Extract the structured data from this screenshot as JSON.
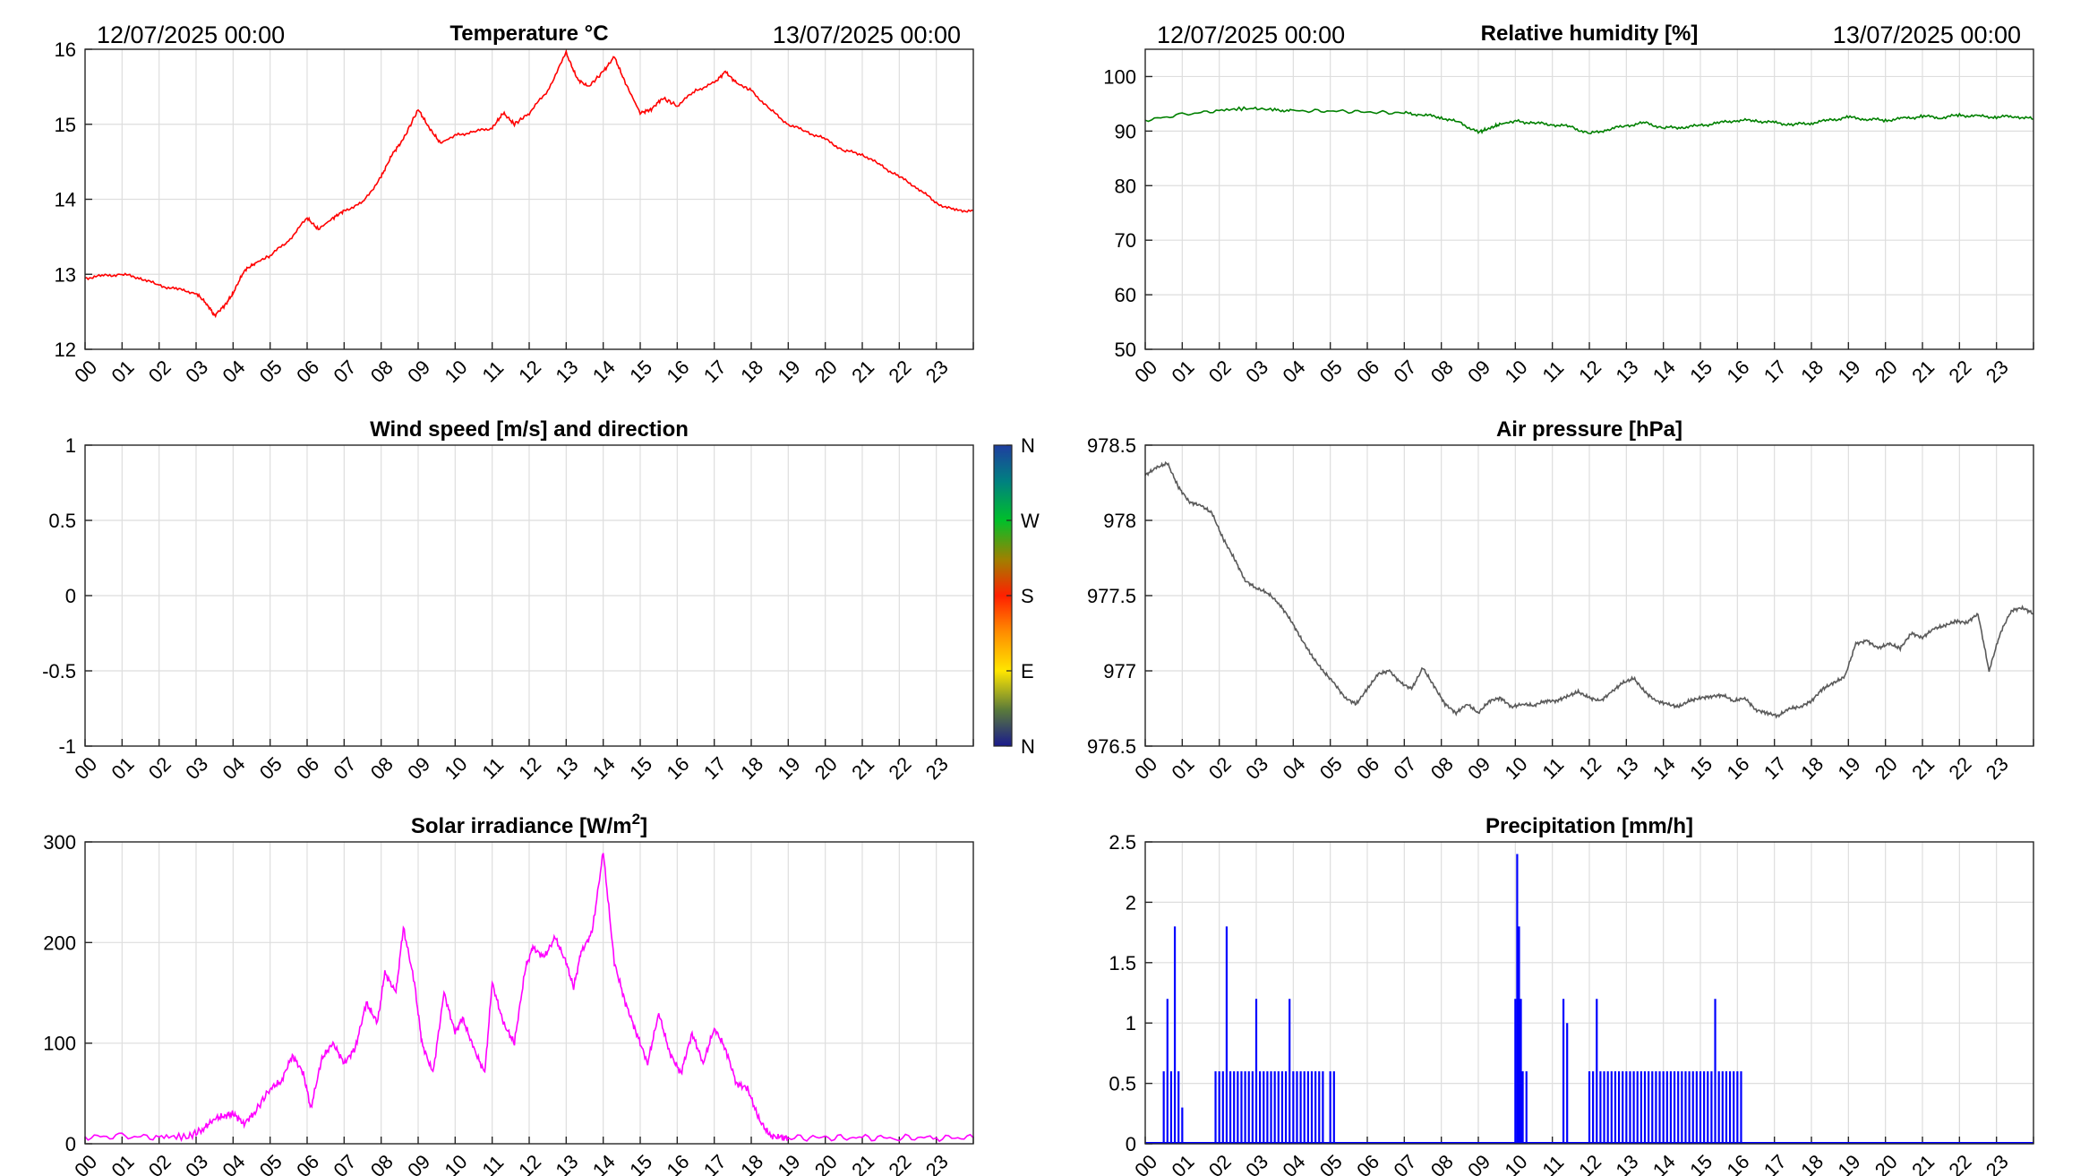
{
  "header": {
    "left_date": "12/07/2025 00:00",
    "right_date": "13/07/2025 00:00"
  },
  "hour_labels": [
    "00",
    "01",
    "02",
    "03",
    "04",
    "05",
    "06",
    "07",
    "08",
    "09",
    "10",
    "11",
    "12",
    "13",
    "14",
    "15",
    "16",
    "17",
    "18",
    "19",
    "20",
    "21",
    "22",
    "23"
  ],
  "chart_data": [
    {
      "id": "temperature",
      "type": "line",
      "title": "Temperature °C",
      "color": "#ff0000",
      "ylim": [
        12,
        16
      ],
      "yticks": [
        "12",
        "13",
        "14",
        "15",
        "16"
      ],
      "xlim": [
        0,
        24
      ],
      "grid": true,
      "series": [
        {
          "x": [
            0,
            0.5,
            1,
            1.5,
            2,
            2.5,
            3,
            3.3,
            3.5,
            3.8,
            4,
            4.3,
            4.6,
            5,
            5.5,
            6,
            6.3,
            6.7,
            7,
            7.5,
            8,
            8.3,
            8.6,
            9,
            9.3,
            9.6,
            10,
            10.5,
            11,
            11.3,
            11.6,
            12,
            12.5,
            13,
            13.3,
            13.6,
            14,
            14.3,
            14.6,
            15,
            15.3,
            15.6,
            16,
            16.5,
            17,
            17.3,
            17.6,
            18,
            18.5,
            19,
            19.5,
            20,
            20.5,
            21,
            21.5,
            22,
            22.5,
            23,
            23.5,
            24
          ],
          "y": [
            12.95,
            12.98,
            13.0,
            12.95,
            12.85,
            12.8,
            12.75,
            12.6,
            12.45,
            12.6,
            12.75,
            13.05,
            13.15,
            13.25,
            13.45,
            13.75,
            13.6,
            13.75,
            13.85,
            13.95,
            14.3,
            14.6,
            14.8,
            15.2,
            14.95,
            14.75,
            14.85,
            14.9,
            14.95,
            15.15,
            15.0,
            15.15,
            15.45,
            15.95,
            15.6,
            15.5,
            15.7,
            15.9,
            15.55,
            15.15,
            15.2,
            15.35,
            15.25,
            15.45,
            15.55,
            15.7,
            15.55,
            15.45,
            15.2,
            15.0,
            14.9,
            14.8,
            14.65,
            14.6,
            14.45,
            14.3,
            14.15,
            13.95,
            13.85,
            13.85
          ]
        }
      ]
    },
    {
      "id": "humidity",
      "type": "line",
      "title": "Relative humidity [%]",
      "color": "#008000",
      "ylim": [
        50,
        105
      ],
      "yticks": [
        "50",
        "60",
        "70",
        "80",
        "90",
        "100"
      ],
      "xlim": [
        0,
        24
      ],
      "grid": true,
      "series": [
        {
          "x": [
            0,
            1,
            2,
            2.8,
            3.5,
            4,
            5,
            6,
            7,
            7.5,
            8,
            8.5,
            9,
            9.3,
            9.6,
            10,
            10.5,
            11,
            11.5,
            12,
            12.5,
            13,
            13.5,
            14,
            14.5,
            15,
            15.5,
            16,
            16.5,
            17,
            17.5,
            18,
            18.5,
            19,
            19.5,
            20,
            20.5,
            21,
            21.5,
            22,
            22.5,
            23,
            23.5,
            24
          ],
          "y": [
            92,
            93,
            93.8,
            94.2,
            93.9,
            93.7,
            93.7,
            93.5,
            93.3,
            93.0,
            92.5,
            91.5,
            89.8,
            90.5,
            91.3,
            91.8,
            91.5,
            91.2,
            90.8,
            89.5,
            90.3,
            91.0,
            91.5,
            90.6,
            90.7,
            91.0,
            91.5,
            92.0,
            91.9,
            91.5,
            91.2,
            91.5,
            92.0,
            92.5,
            92.2,
            92.0,
            92.3,
            92.7,
            92.5,
            92.9,
            92.7,
            92.6,
            92.7,
            92.2
          ]
        }
      ]
    },
    {
      "id": "wind",
      "type": "scatter",
      "title": "Wind speed [m/s] and direction",
      "ylim": [
        -1,
        1
      ],
      "yticks": [
        "-1",
        "-0.5",
        "0",
        "0.5",
        "1"
      ],
      "xlim": [
        0,
        24
      ],
      "grid": true,
      "series": [],
      "colorbar": {
        "labels": [
          "N",
          "E",
          "S",
          "W",
          "N"
        ],
        "colors": [
          "#1a1a8c",
          "#ffe600",
          "#ff2000",
          "#00c02a",
          "#1f3ea0"
        ]
      }
    },
    {
      "id": "pressure",
      "type": "line",
      "title": "Air pressure [hPa]",
      "color": "#5a5a5a",
      "ylim": [
        976.5,
        978.5
      ],
      "yticks": [
        "976.5",
        "977",
        "977.5",
        "978",
        "978.5"
      ],
      "xlim": [
        0,
        24
      ],
      "grid": true,
      "series": [
        {
          "x": [
            0,
            0.3,
            0.6,
            0.9,
            1.2,
            1.5,
            1.8,
            2.1,
            2.4,
            2.7,
            3.0,
            3.3,
            3.6,
            3.9,
            4.2,
            4.5,
            4.8,
            5.1,
            5.4,
            5.7,
            6.0,
            6.3,
            6.6,
            6.9,
            7.2,
            7.5,
            7.8,
            8.1,
            8.4,
            8.7,
            9.0,
            9.3,
            9.6,
            9.9,
            10.2,
            10.5,
            10.8,
            11.1,
            11.4,
            11.7,
            12.0,
            12.3,
            12.6,
            12.9,
            13.2,
            13.5,
            13.8,
            14.1,
            14.4,
            14.7,
            15.0,
            15.3,
            15.6,
            15.9,
            16.2,
            16.5,
            16.8,
            17.1,
            17.4,
            17.7,
            18.0,
            18.3,
            18.6,
            18.9,
            19.2,
            19.5,
            19.8,
            20.1,
            20.4,
            20.7,
            21.0,
            21.3,
            21.6,
            21.9,
            22.2,
            22.5,
            22.8,
            23.1,
            23.4,
            23.7,
            24.0
          ],
          "y": [
            978.3,
            978.35,
            978.38,
            978.22,
            978.12,
            978.1,
            978.05,
            977.88,
            977.75,
            977.6,
            977.55,
            977.52,
            977.45,
            977.35,
            977.22,
            977.1,
            977.0,
            976.92,
            976.82,
            976.78,
            976.88,
            976.98,
            977.0,
            976.92,
            976.88,
            977.02,
            976.9,
            976.78,
            976.72,
            976.78,
            976.72,
            976.8,
            976.82,
            976.76,
            976.78,
            976.77,
            976.8,
            976.8,
            976.83,
            976.86,
            976.82,
            976.8,
            976.86,
            976.92,
            976.95,
            976.86,
            976.8,
            976.78,
            976.76,
            976.8,
            976.82,
            976.83,
            976.84,
            976.8,
            976.82,
            976.74,
            976.72,
            976.7,
            976.75,
            976.76,
            976.8,
            976.88,
            976.92,
            976.96,
            977.18,
            977.2,
            977.15,
            977.18,
            977.15,
            977.25,
            977.22,
            977.28,
            977.3,
            977.33,
            977.32,
            977.38,
            977.0,
            977.25,
            977.4,
            977.42,
            977.38
          ]
        }
      ]
    },
    {
      "id": "solar",
      "type": "line",
      "title": "Solar irradiance [W/m2]",
      "color": "#ff00ff",
      "ylim": [
        0,
        300
      ],
      "yticks": [
        "0",
        "100",
        "200",
        "300"
      ],
      "xlim": [
        0,
        24
      ],
      "grid": true,
      "series": [
        {
          "x": [
            0,
            1,
            2,
            2.8,
            3.2,
            3.5,
            3.8,
            4.0,
            4.3,
            4.6,
            5.0,
            5.3,
            5.6,
            5.9,
            6.1,
            6.4,
            6.7,
            7.0,
            7.3,
            7.6,
            7.9,
            8.1,
            8.4,
            8.6,
            8.9,
            9.1,
            9.4,
            9.7,
            10.0,
            10.2,
            10.5,
            10.8,
            11.0,
            11.3,
            11.6,
            11.9,
            12.1,
            12.4,
            12.7,
            13.0,
            13.2,
            13.4,
            13.7,
            14.0,
            14.3,
            14.6,
            14.9,
            15.2,
            15.5,
            15.8,
            16.1,
            16.4,
            16.7,
            17.0,
            17.3,
            17.6,
            17.9,
            18.2,
            18.5,
            18.8,
            19.0,
            20,
            21,
            22,
            23,
            24
          ],
          "y": [
            7,
            7,
            7,
            7,
            15,
            25,
            28,
            30,
            20,
            32,
            55,
            62,
            88,
            70,
            35,
            85,
            100,
            80,
            95,
            140,
            120,
            170,
            150,
            215,
            160,
            100,
            70,
            150,
            110,
            125,
            95,
            70,
            160,
            120,
            100,
            175,
            195,
            185,
            205,
            180,
            155,
            190,
            210,
            290,
            180,
            140,
            110,
            80,
            130,
            90,
            70,
            110,
            80,
            115,
            95,
            60,
            55,
            25,
            8,
            6,
            6,
            6,
            6,
            6,
            6,
            6
          ]
        }
      ]
    },
    {
      "id": "precipitation",
      "type": "bar",
      "title": "Precipitation [mm/h]",
      "color": "#0000ff",
      "ylim": [
        0,
        2.5
      ],
      "yticks": [
        "0",
        "0.5",
        "1",
        "1.5",
        "2",
        "2.5"
      ],
      "xlim": [
        0,
        24
      ],
      "grid": true,
      "series": [
        {
          "x": [
            0.5,
            0.6,
            0.7,
            0.8,
            0.9,
            1.0,
            1.9,
            2.0,
            2.1,
            2.2,
            2.3,
            2.4,
            2.5,
            2.6,
            2.7,
            2.8,
            2.9,
            3.0,
            3.1,
            3.2,
            3.3,
            3.4,
            3.5,
            3.6,
            3.7,
            3.8,
            3.9,
            4.0,
            4.1,
            4.2,
            4.3,
            4.4,
            4.5,
            4.6,
            4.7,
            4.8,
            5.0,
            5.1,
            10.0,
            10.05,
            10.1,
            10.15,
            10.2,
            10.3,
            11.3,
            11.4,
            12.0,
            12.1,
            12.2,
            12.3,
            12.4,
            12.5,
            12.6,
            12.7,
            12.8,
            12.9,
            13.0,
            13.1,
            13.2,
            13.3,
            13.4,
            13.5,
            13.6,
            13.7,
            13.8,
            13.9,
            14.0,
            14.1,
            14.2,
            14.3,
            14.4,
            14.5,
            14.6,
            14.7,
            14.8,
            14.9,
            15.0,
            15.1,
            15.2,
            15.3,
            15.4,
            15.5,
            15.6,
            15.7,
            15.8,
            15.9,
            16.0,
            16.1
          ],
          "y": [
            0.6,
            1.2,
            0.6,
            1.8,
            0.6,
            0.3,
            0.6,
            0.6,
            0.6,
            1.8,
            0.6,
            0.6,
            0.6,
            0.6,
            0.6,
            0.6,
            0.6,
            1.2,
            0.6,
            0.6,
            0.6,
            0.6,
            0.6,
            0.6,
            0.6,
            0.6,
            1.2,
            0.6,
            0.6,
            0.6,
            0.6,
            0.6,
            0.6,
            0.6,
            0.6,
            0.6,
            0.6,
            0.6,
            1.2,
            2.4,
            1.8,
            1.2,
            0.6,
            0.6,
            1.2,
            1.0,
            0.6,
            0.6,
            1.2,
            0.6,
            0.6,
            0.6,
            0.6,
            0.6,
            0.6,
            0.6,
            0.6,
            0.6,
            0.6,
            0.6,
            0.6,
            0.6,
            0.6,
            0.6,
            0.6,
            0.6,
            0.6,
            0.6,
            0.6,
            0.6,
            0.6,
            0.6,
            0.6,
            0.6,
            0.6,
            0.6,
            0.6,
            0.6,
            0.6,
            0.6,
            1.2,
            0.6,
            0.6,
            0.6,
            0.6,
            0.6,
            0.6,
            0.6
          ]
        }
      ]
    }
  ]
}
